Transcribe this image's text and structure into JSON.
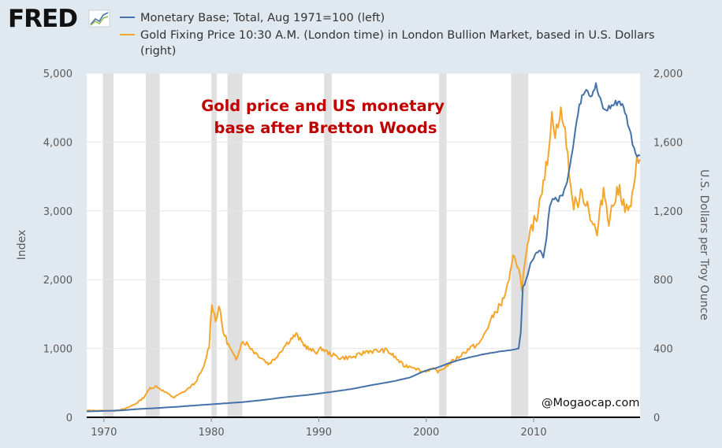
{
  "header": {
    "logo_text": "FRED",
    "logo_icon": "chart-trend-icon"
  },
  "chart_data": {
    "type": "line",
    "title": "Gold price and US monetary base after Bretton Woods",
    "credit": "@Mogaocap.com",
    "xlabel": "",
    "ylabel_left": "Index",
    "ylabel_right": "U.S. Dollars per Troy Ounce",
    "xlim": [
      1968.4,
      2019.9
    ],
    "ylim_left": [
      0,
      5000
    ],
    "ylim_right": [
      0,
      2000
    ],
    "x_ticks": [
      1970,
      1980,
      1990,
      2000,
      2010
    ],
    "y_ticks_left": [
      "0",
      "1,000",
      "2,000",
      "3,000",
      "4,000",
      "5,000"
    ],
    "y_ticks_left_values": [
      0,
      1000,
      2000,
      3000,
      4000,
      5000
    ],
    "y_ticks_right": [
      "0",
      "400",
      "800",
      "1,200",
      "1,600",
      "2,000"
    ],
    "y_ticks_right_values": [
      0,
      400,
      800,
      1200,
      1600,
      2000
    ],
    "grid": true,
    "recessions": [
      [
        1969.9,
        1970.9
      ],
      [
        1973.9,
        1975.2
      ],
      [
        1980.0,
        1980.5
      ],
      [
        1981.5,
        1982.9
      ],
      [
        1990.5,
        1991.2
      ],
      [
        2001.2,
        2001.9
      ],
      [
        2007.9,
        2009.5
      ]
    ],
    "series": [
      {
        "name": "Monetary Base; Total, Aug 1971=100 (left)",
        "axis": "left",
        "color": "#4472a8",
        "points": [
          [
            1968.4,
            85
          ],
          [
            1971.6,
            100
          ],
          [
            1973,
            118
          ],
          [
            1975,
            135
          ],
          [
            1977,
            155
          ],
          [
            1979,
            178
          ],
          [
            1981,
            200
          ],
          [
            1983,
            222
          ],
          [
            1985,
            255
          ],
          [
            1987,
            295
          ],
          [
            1989,
            325
          ],
          [
            1991,
            365
          ],
          [
            1993,
            410
          ],
          [
            1995,
            470
          ],
          [
            1997,
            525
          ],
          [
            1998.5,
            580
          ],
          [
            1999.5,
            650
          ],
          [
            2000.2,
            690
          ],
          [
            2001,
            720
          ],
          [
            2002,
            780
          ],
          [
            2003,
            830
          ],
          [
            2004,
            870
          ],
          [
            2005,
            905
          ],
          [
            2006,
            935
          ],
          [
            2007,
            960
          ],
          [
            2008,
            980
          ],
          [
            2008.6,
            1000
          ],
          [
            2008.8,
            1250
          ],
          [
            2009,
            1900
          ],
          [
            2009.3,
            2000
          ],
          [
            2009.7,
            2250
          ],
          [
            2010,
            2300
          ],
          [
            2010.5,
            2450
          ],
          [
            2010.9,
            2300
          ],
          [
            2011.2,
            2600
          ],
          [
            2011.5,
            3100
          ],
          [
            2011.9,
            3200
          ],
          [
            2012.3,
            3150
          ],
          [
            2012.7,
            3250
          ],
          [
            2013.0,
            3350
          ],
          [
            2013.5,
            3800
          ],
          [
            2014.0,
            4300
          ],
          [
            2014.5,
            4700
          ],
          [
            2014.9,
            4800
          ],
          [
            2015.3,
            4680
          ],
          [
            2015.8,
            4820
          ],
          [
            2016.2,
            4600
          ],
          [
            2016.6,
            4450
          ],
          [
            2017.0,
            4500
          ],
          [
            2017.5,
            4550
          ],
          [
            2018.0,
            4600
          ],
          [
            2018.5,
            4450
          ],
          [
            2018.9,
            4200
          ],
          [
            2019.2,
            4000
          ],
          [
            2019.5,
            3850
          ],
          [
            2019.9,
            3800
          ]
        ]
      },
      {
        "name": "Gold Fixing Price 10:30 A.M. (London time) in London Bullion Market, based in U.S. Dollars (right)",
        "axis": "right",
        "color": "#f4a62a",
        "points": [
          [
            1968.4,
            40
          ],
          [
            1971,
            38
          ],
          [
            1972,
            50
          ],
          [
            1973.0,
            80
          ],
          [
            1973.7,
            115
          ],
          [
            1974.3,
            170
          ],
          [
            1974.9,
            180
          ],
          [
            1975.6,
            150
          ],
          [
            1976.5,
            115
          ],
          [
            1977.5,
            150
          ],
          [
            1978.5,
            200
          ],
          [
            1979.3,
            290
          ],
          [
            1979.8,
            420
          ],
          [
            1980.05,
            670
          ],
          [
            1980.4,
            560
          ],
          [
            1980.7,
            650
          ],
          [
            1981.1,
            500
          ],
          [
            1981.6,
            420
          ],
          [
            1982.3,
            330
          ],
          [
            1982.8,
            440
          ],
          [
            1983.3,
            430
          ],
          [
            1984.0,
            380
          ],
          [
            1984.8,
            340
          ],
          [
            1985.3,
            310
          ],
          [
            1985.9,
            340
          ],
          [
            1986.5,
            390
          ],
          [
            1987.3,
            450
          ],
          [
            1987.9,
            480
          ],
          [
            1988.5,
            430
          ],
          [
            1989.2,
            390
          ],
          [
            1989.8,
            380
          ],
          [
            1990.3,
            400
          ],
          [
            1991.0,
            370
          ],
          [
            1992.0,
            345
          ],
          [
            1993.3,
            350
          ],
          [
            1994.5,
            385
          ],
          [
            1995.5,
            385
          ],
          [
            1996.3,
            390
          ],
          [
            1997.0,
            355
          ],
          [
            1997.9,
            300
          ],
          [
            1998.8,
            295
          ],
          [
            1999.6,
            265
          ],
          [
            2000.5,
            280
          ],
          [
            2001.2,
            265
          ],
          [
            2002.0,
            305
          ],
          [
            2003.0,
            350
          ],
          [
            2004.0,
            400
          ],
          [
            2005.0,
            430
          ],
          [
            2006.0,
            560
          ],
          [
            2006.5,
            620
          ],
          [
            2007.0,
            660
          ],
          [
            2007.7,
            780
          ],
          [
            2008.2,
            960
          ],
          [
            2008.6,
            860
          ],
          [
            2008.9,
            760
          ],
          [
            2009.3,
            930
          ],
          [
            2009.8,
            1100
          ],
          [
            2010.3,
            1170
          ],
          [
            2010.9,
            1390
          ],
          [
            2011.4,
            1500
          ],
          [
            2011.7,
            1830
          ],
          [
            2012.0,
            1620
          ],
          [
            2012.4,
            1780
          ],
          [
            2012.8,
            1710
          ],
          [
            2013.3,
            1450
          ],
          [
            2013.6,
            1250
          ],
          [
            2014.0,
            1240
          ],
          [
            2014.5,
            1300
          ],
          [
            2015.0,
            1240
          ],
          [
            2015.4,
            1150
          ],
          [
            2015.9,
            1060
          ],
          [
            2016.5,
            1330
          ],
          [
            2017.0,
            1150
          ],
          [
            2017.5,
            1260
          ],
          [
            2018.0,
            1330
          ],
          [
            2018.5,
            1220
          ],
          [
            2018.8,
            1190
          ],
          [
            2019.3,
            1300
          ],
          [
            2019.6,
            1480
          ],
          [
            2019.9,
            1500
          ]
        ]
      }
    ]
  }
}
